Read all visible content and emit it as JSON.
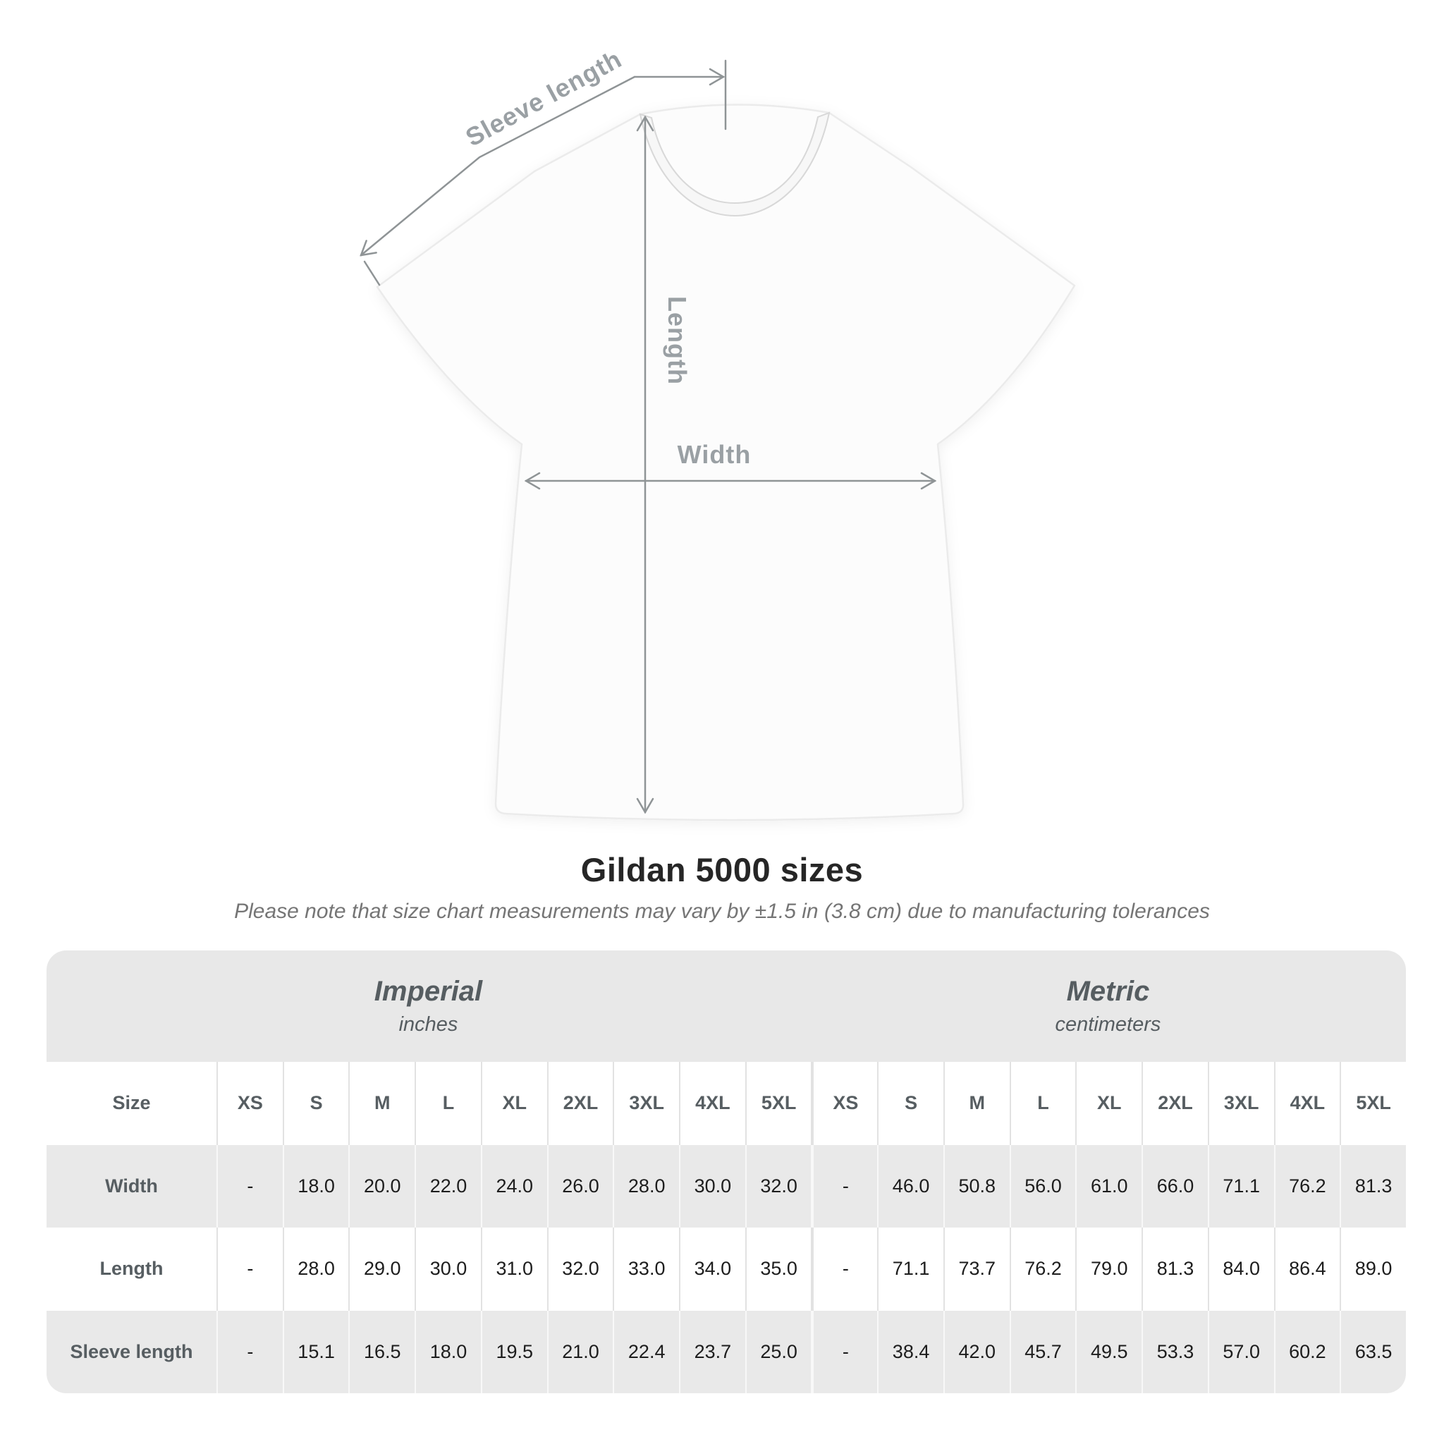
{
  "diagram": {
    "sleeve_label": "Sleeve length",
    "length_label": "Length",
    "width_label": "Width"
  },
  "chart_data": {
    "type": "table",
    "title": "Gildan 5000 sizes",
    "note": "Please note that size chart measurements may vary by ±1.5 in (3.8 cm) due to manufacturing tolerances",
    "size_label": "Size",
    "column_groups": [
      {
        "label": "Imperial",
        "unit": "inches"
      },
      {
        "label": "Metric",
        "unit": "centimeters"
      }
    ],
    "columns": [
      "XS",
      "S",
      "M",
      "L",
      "XL",
      "2XL",
      "3XL",
      "4XL",
      "5XL"
    ],
    "rows": [
      {
        "label": "Width",
        "imperial": [
          "-",
          "18.0",
          "20.0",
          "22.0",
          "24.0",
          "26.0",
          "28.0",
          "30.0",
          "32.0"
        ],
        "metric": [
          "-",
          "46.0",
          "50.8",
          "56.0",
          "61.0",
          "66.0",
          "71.1",
          "76.2",
          "81.3"
        ]
      },
      {
        "label": "Length",
        "imperial": [
          "-",
          "28.0",
          "29.0",
          "30.0",
          "31.0",
          "32.0",
          "33.0",
          "34.0",
          "35.0"
        ],
        "metric": [
          "-",
          "71.1",
          "73.7",
          "76.2",
          "79.0",
          "81.3",
          "84.0",
          "86.4",
          "89.0"
        ]
      },
      {
        "label": "Sleeve length",
        "imperial": [
          "-",
          "15.1",
          "16.5",
          "18.0",
          "19.5",
          "21.0",
          "22.4",
          "23.7",
          "25.0"
        ],
        "metric": [
          "-",
          "38.4",
          "42.0",
          "45.7",
          "49.5",
          "53.3",
          "57.0",
          "60.2",
          "63.5"
        ]
      }
    ]
  },
  "colors": {
    "dimension_line": "#8f9496",
    "dimension_label": "#9aa0a4",
    "band_gray": "#e8e8e8",
    "row_alt_gray": "#e9e9e9",
    "header_text": "#575e62",
    "value_text": "#1d1d1d"
  }
}
